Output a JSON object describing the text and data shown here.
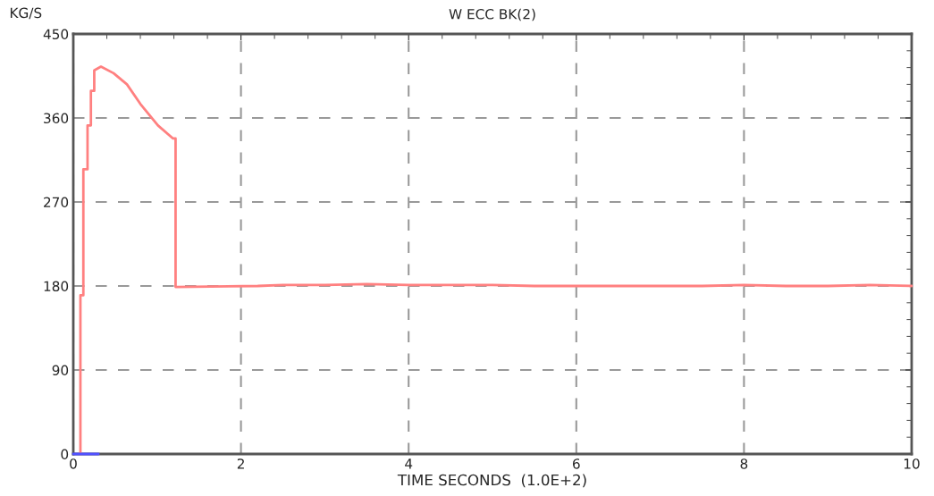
{
  "chart_data": {
    "type": "line",
    "title": "W ECC BK(2)",
    "ylabel": "KG/S",
    "xlabel": "TIME SECONDS  (1.0E+2)",
    "series": [
      {
        "color": "#ff8080",
        "x": [
          0.085,
          0.085,
          0.12,
          0.12,
          0.17,
          0.17,
          0.21,
          0.21,
          0.25,
          0.25,
          0.33,
          0.48,
          0.64,
          0.8,
          1.01,
          1.19,
          1.22,
          1.22,
          2.2,
          2.5,
          3.0,
          3.5,
          4.0,
          4.5,
          5.0,
          5.5,
          6.0,
          6.5,
          7.0,
          7.5,
          8.0,
          8.5,
          9.0,
          9.5,
          10.0
        ],
        "values": [
          0,
          170,
          170,
          305,
          305,
          352,
          352,
          389,
          389,
          411,
          415,
          408,
          396,
          375,
          352,
          338,
          338,
          179,
          180,
          181,
          181,
          182,
          181,
          181,
          181,
          180,
          180,
          180,
          180,
          180,
          181,
          180,
          180,
          181,
          180
        ]
      },
      {
        "color": "#5050ff",
        "x": [
          0.0,
          0.3
        ],
        "values": [
          0,
          0
        ]
      }
    ],
    "xlim": [
      0,
      10
    ],
    "ylim": [
      0,
      450
    ],
    "xticks": [
      0,
      2,
      4,
      6,
      8,
      10
    ],
    "yticks": [
      0,
      90,
      180,
      270,
      360,
      450
    ],
    "grid": true
  }
}
